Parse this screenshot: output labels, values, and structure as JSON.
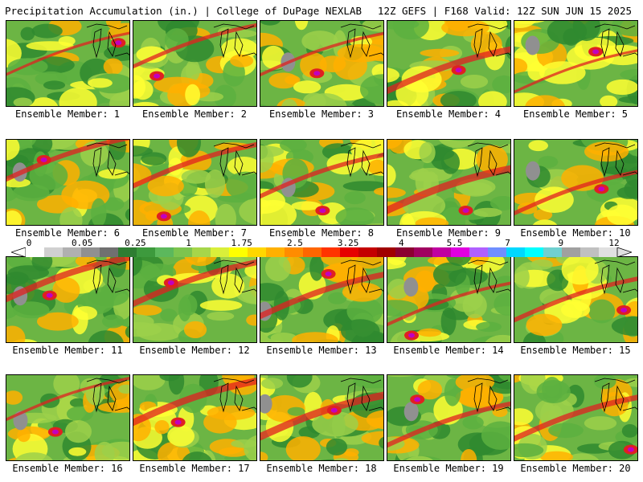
{
  "header": {
    "left_title": "Precipitation Accumulation (in.) | College of DuPage NEXLAB",
    "right_title": "12Z GEFS | F168 Valid: 12Z SUN JUN 15 2025"
  },
  "members": [
    {
      "label": "Ensemble Member: 1"
    },
    {
      "label": "Ensemble Member: 2"
    },
    {
      "label": "Ensemble Member: 3"
    },
    {
      "label": "Ensemble Member: 4"
    },
    {
      "label": "Ensemble Member: 5"
    },
    {
      "label": "Ensemble Member: 6"
    },
    {
      "label": "Ensemble Member: 7"
    },
    {
      "label": "Ensemble Member: 8"
    },
    {
      "label": "Ensemble Member: 9"
    },
    {
      "label": "Ensemble Member: 10"
    },
    {
      "label": "Ensemble Member: 11"
    },
    {
      "label": "Ensemble Member: 12"
    },
    {
      "label": "Ensemble Member: 13"
    },
    {
      "label": "Ensemble Member: 14"
    },
    {
      "label": "Ensemble Member: 15"
    },
    {
      "label": "Ensemble Member: 16"
    },
    {
      "label": "Ensemble Member: 17"
    },
    {
      "label": "Ensemble Member: 18"
    },
    {
      "label": "Ensemble Member: 19"
    },
    {
      "label": "Ensemble Member: 20"
    }
  ],
  "colorbar": {
    "labels": [
      "0",
      "0.05",
      "0.25",
      "1",
      "1.75",
      "2.5",
      "3.25",
      "4",
      "5.5",
      "7",
      "9",
      "12"
    ],
    "colors": [
      "#ffffff",
      "#d0d0d0",
      "#b0b0b0",
      "#909090",
      "#707070",
      "#2e7d32",
      "#3d9a3d",
      "#5cb85c",
      "#7cc44e",
      "#a6d64a",
      "#d9ef3a",
      "#ffff00",
      "#ffd700",
      "#ffb000",
      "#ff8c00",
      "#ff6600",
      "#ff3300",
      "#e60000",
      "#c40000",
      "#a00000",
      "#8b0030",
      "#a00060",
      "#c000a0",
      "#e000e0",
      "#b060ff",
      "#6f8fff",
      "#00d8ff",
      "#00ffff",
      "#70d0d0",
      "#a0a0a0",
      "#c0c0c0",
      "#e0e0e0"
    ]
  },
  "map_colors": {
    "dark_green": "#2f8a2f",
    "green": "#5cb040",
    "light_green": "#9cd04a",
    "yellow": "#ffff33",
    "orange": "#ffb000",
    "red": "#e02020",
    "magenta": "#c000c0",
    "cyan": "#40e0ff",
    "gray": "#909090"
  }
}
